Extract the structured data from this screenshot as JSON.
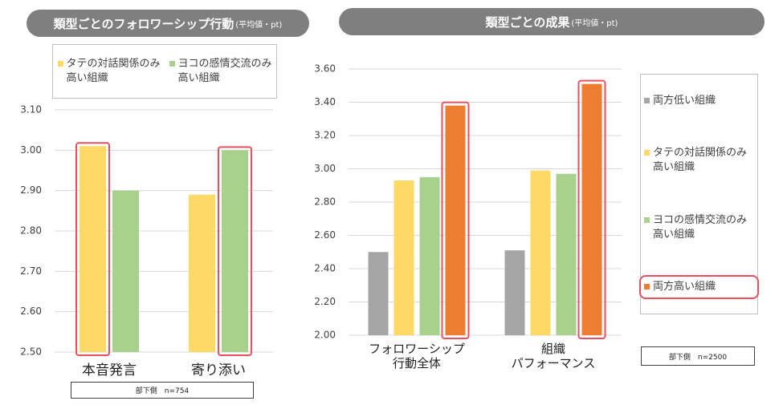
{
  "chart_data": [
    {
      "type": "bar",
      "title": "類型ごとのフォロワーシップ行動",
      "subtitle": "(平均値・pt)",
      "categories": [
        "本音発言",
        "寄り添い"
      ],
      "series": [
        {
          "name": "タテの対話関係のみ高い組織",
          "color": "#ffd966",
          "values": [
            3.01,
            2.89
          ]
        },
        {
          "name": "ヨコの感情交流のみ高い組織",
          "color": "#a9d18e",
          "values": [
            2.9,
            3.0
          ]
        }
      ],
      "ylim": [
        2.5,
        3.1
      ],
      "yticks": [
        {
          "value": 2.5,
          "label": "2.50"
        },
        {
          "value": 2.6,
          "label": "2.60"
        },
        {
          "value": 2.7,
          "label": "2.70"
        },
        {
          "value": 2.8,
          "label": "2.80"
        },
        {
          "value": 2.9,
          "label": "2.90"
        },
        {
          "value": 3.0,
          "label": "3.00"
        },
        {
          "value": 3.1,
          "label": "3.10"
        }
      ],
      "grid": true,
      "legend": "top",
      "highlight": [
        {
          "series": 0,
          "category": 0
        },
        {
          "series": 1,
          "category": 1
        }
      ],
      "footnote": "部下側　n=754"
    },
    {
      "type": "bar",
      "title": "類型ごとの成果",
      "subtitle": "(平均値・pt)",
      "categories": [
        "フォロワーシップ\n行動全体",
        "組織\nパフォーマンス"
      ],
      "series": [
        {
          "name": "両方低い組織",
          "color": "#a5a5a5",
          "values": [
            2.5,
            2.51
          ]
        },
        {
          "name": "タテの対話関係のみ高い組織",
          "color": "#ffd966",
          "values": [
            2.93,
            2.99
          ]
        },
        {
          "name": "ヨコの感情交流のみ高い組織",
          "color": "#a9d18e",
          "values": [
            2.95,
            2.97
          ]
        },
        {
          "name": "両方高い組織",
          "color": "#ed7d31",
          "values": [
            3.38,
            3.51
          ]
        }
      ],
      "ylim": [
        2.0,
        3.6
      ],
      "yticks": [
        {
          "value": 2.0,
          "label": "2.00"
        },
        {
          "value": 2.2,
          "label": "2.20"
        },
        {
          "value": 2.4,
          "label": "2.40"
        },
        {
          "value": 2.6,
          "label": "2.60"
        },
        {
          "value": 2.8,
          "label": "2.80"
        },
        {
          "value": 3.0,
          "label": "3.00"
        },
        {
          "value": 3.2,
          "label": "3.20"
        },
        {
          "value": 3.4,
          "label": "3.40"
        },
        {
          "value": 3.6,
          "label": "3.60"
        }
      ],
      "grid": true,
      "legend": "right",
      "highlight": [
        {
          "series": 3,
          "category": 0
        },
        {
          "series": 3,
          "category": 1
        }
      ],
      "legend_highlight": 3,
      "footnote": "部下側　n=2500"
    }
  ]
}
